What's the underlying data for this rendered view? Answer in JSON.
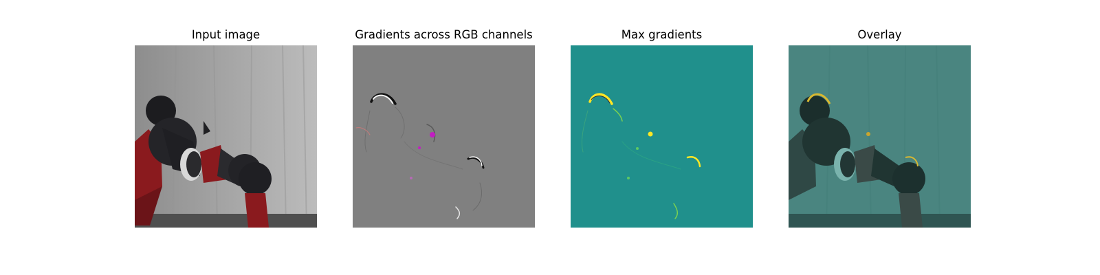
{
  "figure": {
    "panels": [
      {
        "title": "Input image",
        "image_content": "grayscale-ish photo of a black and red robot arm with gripper in front of a white backdrop"
      },
      {
        "title": "Gradients across RGB channels",
        "image_content": "gray gradient map with sparse black, white and magenta edge highlights along the arm outline"
      },
      {
        "title": "Max gradients",
        "image_content": "teal map with yellow hot spots at the elbow and gripper edges"
      },
      {
        "title": "Overlay",
        "image_content": "input photo tinted teal with the max-gradient hot spots blended on top"
      }
    ]
  },
  "colors": {
    "background": "#ffffff",
    "backdrop_gray": "#9c9c9c",
    "arm_black": "#1b1b1e",
    "arm_red": "#8a1a1e",
    "gradient_gray": "#808080",
    "gradient_magenta": "#c21ec2",
    "teal": "#20908c",
    "yellow": "#fde725",
    "overlay_teal": "#4a8580"
  }
}
